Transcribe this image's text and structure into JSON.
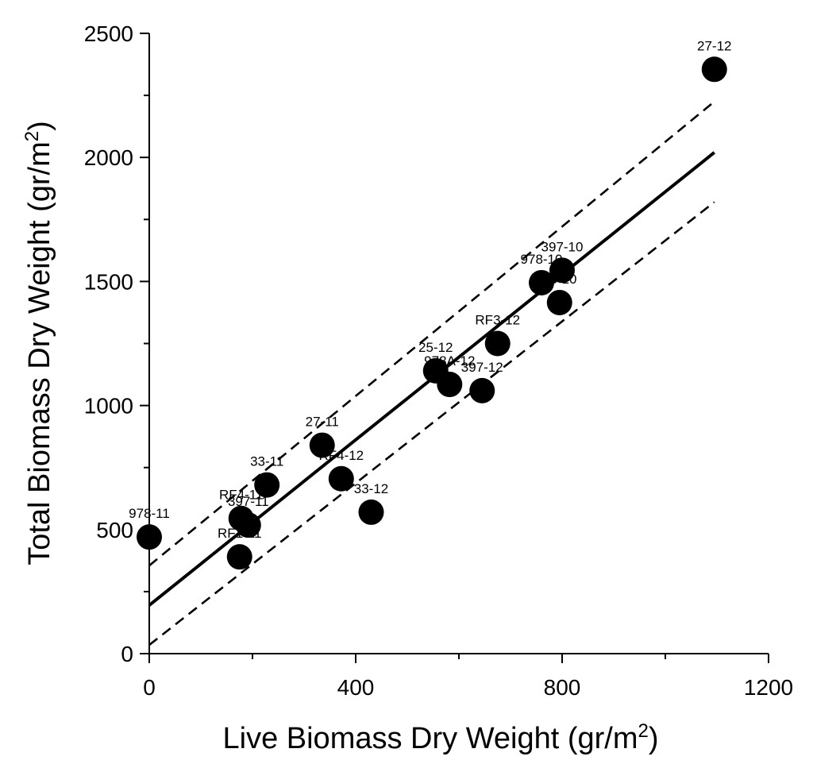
{
  "chart_data": {
    "type": "scatter",
    "title": "",
    "xlabel": "Live Biomass Dry Weight (gr/m",
    "xlabel_sup": "2",
    "xlabel_tail": ")",
    "ylabel": "Total Biomass Dry Weight (gr/m",
    "ylabel_sup": "2",
    "ylabel_tail": ")",
    "xlim": [
      0,
      1200
    ],
    "ylim": [
      0,
      2500
    ],
    "x_ticks": [
      0,
      400,
      800,
      1200
    ],
    "x_minor_ticks": [
      200,
      600,
      1000
    ],
    "y_ticks": [
      0,
      500,
      1000,
      1500,
      2000,
      2500
    ],
    "y_minor_ticks": [
      250,
      750,
      1250,
      1750,
      2250
    ],
    "grid": false,
    "points": [
      {
        "label": "978-11",
        "x": 0,
        "y": 470
      },
      {
        "label": "RF1-11",
        "x": 175,
        "y": 390
      },
      {
        "label": "RF4-11",
        "x": 178,
        "y": 545
      },
      {
        "label": "397-11",
        "x": 192,
        "y": 518
      },
      {
        "label": "33-11",
        "x": 228,
        "y": 680
      },
      {
        "label": "27-11",
        "x": 335,
        "y": 840
      },
      {
        "label": "RF4-12",
        "x": 372,
        "y": 705
      },
      {
        "label": "33-12",
        "x": 430,
        "y": 570
      },
      {
        "label": "25-12",
        "x": 555,
        "y": 1140
      },
      {
        "label": "978A-12",
        "x": 582,
        "y": 1085
      },
      {
        "label": "397-12",
        "x": 645,
        "y": 1060
      },
      {
        "label": "RF3-12",
        "x": 675,
        "y": 1250
      },
      {
        "label": "978-10",
        "x": 760,
        "y": 1495
      },
      {
        "label": "397-10",
        "x": 800,
        "y": 1545
      },
      {
        "label": "33-10",
        "x": 795,
        "y": 1415
      },
      {
        "label": "27-12",
        "x": 1095,
        "y": 2355
      }
    ],
    "fit_line": {
      "style": "solid",
      "x": [
        0,
        1095
      ],
      "y": [
        195,
        2020
      ]
    },
    "confidence_upper": {
      "style": "dashed",
      "x": [
        0,
        1095
      ],
      "y": [
        355,
        2225
      ]
    },
    "confidence_lower": {
      "style": "dashed",
      "x": [
        0,
        1095
      ],
      "y": [
        35,
        1820
      ]
    }
  }
}
